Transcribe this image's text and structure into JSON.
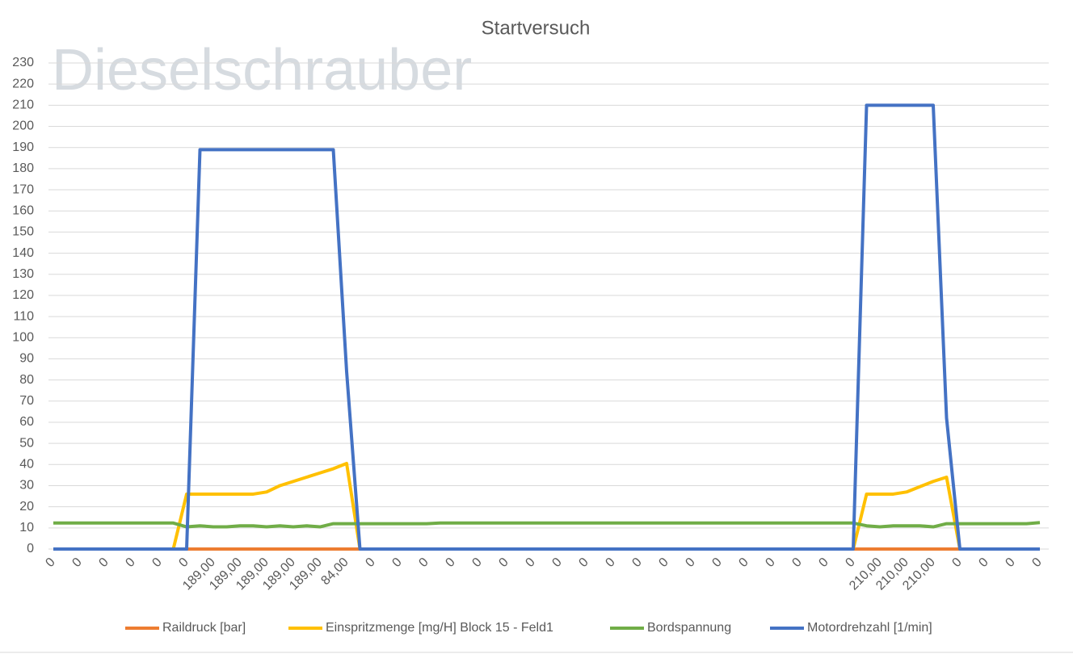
{
  "chart_data": {
    "type": "line",
    "title": "Startversuch",
    "watermark": "Dieselschrauber",
    "categories": [
      "0",
      null,
      "0",
      null,
      "0",
      null,
      "0",
      null,
      "0",
      null,
      "0",
      null,
      "189,00",
      null,
      "189,00",
      null,
      "189,00",
      null,
      "189,00",
      null,
      "189,00",
      null,
      "84,00",
      null,
      "0",
      null,
      "0",
      null,
      "0",
      null,
      "0",
      null,
      "0",
      null,
      "0",
      null,
      "0",
      null,
      "0",
      null,
      "0",
      null,
      "0",
      null,
      "0",
      null,
      "0",
      null,
      "0",
      null,
      "0",
      null,
      "0",
      null,
      "0",
      null,
      "0",
      null,
      "0",
      null,
      "0",
      null,
      "210,00",
      null,
      "210,00",
      null,
      "210,00",
      null,
      "0",
      null,
      "0",
      null,
      "0",
      null,
      "0"
    ],
    "series": [
      {
        "name": "Raildruck [bar]",
        "color": "#ed7d31",
        "values": [
          0,
          0,
          0,
          0,
          0,
          0,
          0,
          0,
          0,
          0,
          0,
          0,
          0,
          0,
          0,
          0,
          0,
          0,
          0,
          0,
          0,
          0,
          0,
          0,
          0,
          0,
          0,
          0,
          0,
          0,
          0,
          0,
          0,
          0,
          0,
          0,
          0,
          0,
          0,
          0,
          0,
          0,
          0,
          0,
          0,
          0,
          0,
          0,
          0,
          0,
          0,
          0,
          0,
          0,
          0,
          0,
          0,
          0,
          0,
          0,
          0,
          0,
          0,
          0,
          0,
          0,
          0,
          0,
          0,
          0,
          0,
          0,
          0,
          0,
          0
        ]
      },
      {
        "name": "Einspritzmenge [mg/H] Block 15 - Feld1",
        "color": "#ffc000",
        "values": [
          0,
          0,
          0,
          0,
          0,
          0,
          0,
          0,
          0,
          0,
          26,
          26,
          26,
          26,
          26,
          26,
          27,
          30,
          32,
          34,
          36,
          38,
          40.5,
          0,
          0,
          0,
          0,
          0,
          0,
          0,
          0,
          0,
          0,
          0,
          0,
          0,
          0,
          0,
          0,
          0,
          0,
          0,
          0,
          0,
          0,
          0,
          0,
          0,
          0,
          0,
          0,
          0,
          0,
          0,
          0,
          0,
          0,
          0,
          0,
          0,
          0,
          26,
          26,
          26,
          27,
          29.5,
          32,
          34,
          0,
          0,
          0,
          0,
          0,
          0,
          0
        ]
      },
      {
        "name": "Bordspannung",
        "color": "#70ad47",
        "values": [
          12.3,
          12.3,
          12.3,
          12.3,
          12.3,
          12.3,
          12.3,
          12.3,
          12.3,
          12.3,
          10.5,
          11,
          10.5,
          10.5,
          11,
          11,
          10.5,
          11,
          10.5,
          11,
          10.5,
          12,
          12,
          12,
          12,
          12,
          12,
          12,
          12,
          12.3,
          12.3,
          12.3,
          12.3,
          12.3,
          12.3,
          12.3,
          12.3,
          12.3,
          12.3,
          12.3,
          12.3,
          12.3,
          12.3,
          12.3,
          12.3,
          12.3,
          12.3,
          12.3,
          12.3,
          12.3,
          12.3,
          12.3,
          12.3,
          12.3,
          12.3,
          12.3,
          12.3,
          12.3,
          12.3,
          12.3,
          12.3,
          11,
          10.5,
          11,
          11,
          11,
          10.5,
          12,
          12,
          12,
          12,
          12,
          12,
          12,
          12.5
        ]
      },
      {
        "name": "Motordrehzahl [1/min]",
        "color": "#4472c4",
        "values": [
          0,
          0,
          0,
          0,
          0,
          0,
          0,
          0,
          0,
          0,
          0,
          189,
          189,
          189,
          189,
          189,
          189,
          189,
          189,
          189,
          189,
          189,
          84,
          0,
          0,
          0,
          0,
          0,
          0,
          0,
          0,
          0,
          0,
          0,
          0,
          0,
          0,
          0,
          0,
          0,
          0,
          0,
          0,
          0,
          0,
          0,
          0,
          0,
          0,
          0,
          0,
          0,
          0,
          0,
          0,
          0,
          0,
          0,
          0,
          0,
          0,
          210,
          210,
          210,
          210,
          210,
          210,
          62,
          0,
          0,
          0,
          0,
          0,
          0,
          0
        ]
      }
    ],
    "ylim": [
      0,
      230
    ],
    "yticks": [
      0,
      10,
      20,
      30,
      40,
      50,
      60,
      70,
      80,
      90,
      100,
      110,
      120,
      130,
      140,
      150,
      160,
      170,
      180,
      190,
      200,
      210,
      220,
      230
    ],
    "grid": true,
    "legend": "bottom"
  }
}
